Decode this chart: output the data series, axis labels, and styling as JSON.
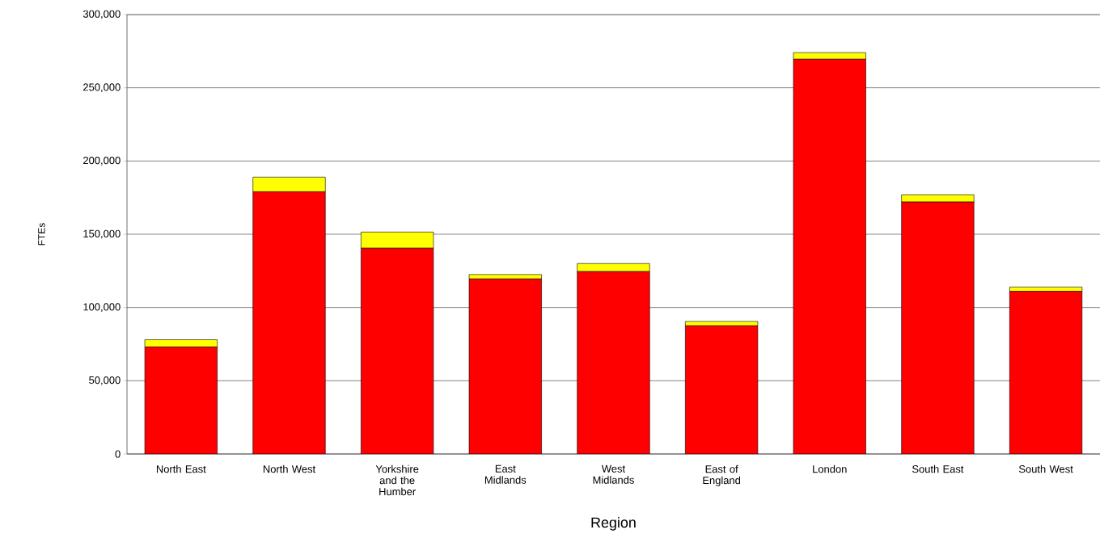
{
  "chart_data": {
    "type": "bar",
    "stacked": true,
    "xlabel": "Region",
    "ylabel": "FTEs",
    "categories": [
      "North East",
      "North West",
      "Yorkshire and the Humber",
      "East Midlands",
      "West Midlands",
      "East of England",
      "London",
      "South East",
      "South West"
    ],
    "series": [
      {
        "color": "#ff0000",
        "values": [
          73000,
          179000,
          140500,
          119500,
          124500,
          87500,
          269500,
          172000,
          111000
        ]
      },
      {
        "color": "#ffff00",
        "values": [
          5000,
          10000,
          11000,
          3000,
          5500,
          3000,
          4500,
          5000,
          3000
        ]
      }
    ],
    "ylim": [
      0,
      300000
    ],
    "yticks": [
      {
        "value": 0,
        "label": "0"
      },
      {
        "value": 50000,
        "label": "50,000"
      },
      {
        "value": 100000,
        "label": "100,000"
      },
      {
        "value": 150000,
        "label": "150,000"
      },
      {
        "value": 200000,
        "label": "200,000"
      },
      {
        "value": 250000,
        "label": "250,000"
      },
      {
        "value": 300000,
        "label": "300,000"
      }
    ],
    "grid": "y"
  }
}
